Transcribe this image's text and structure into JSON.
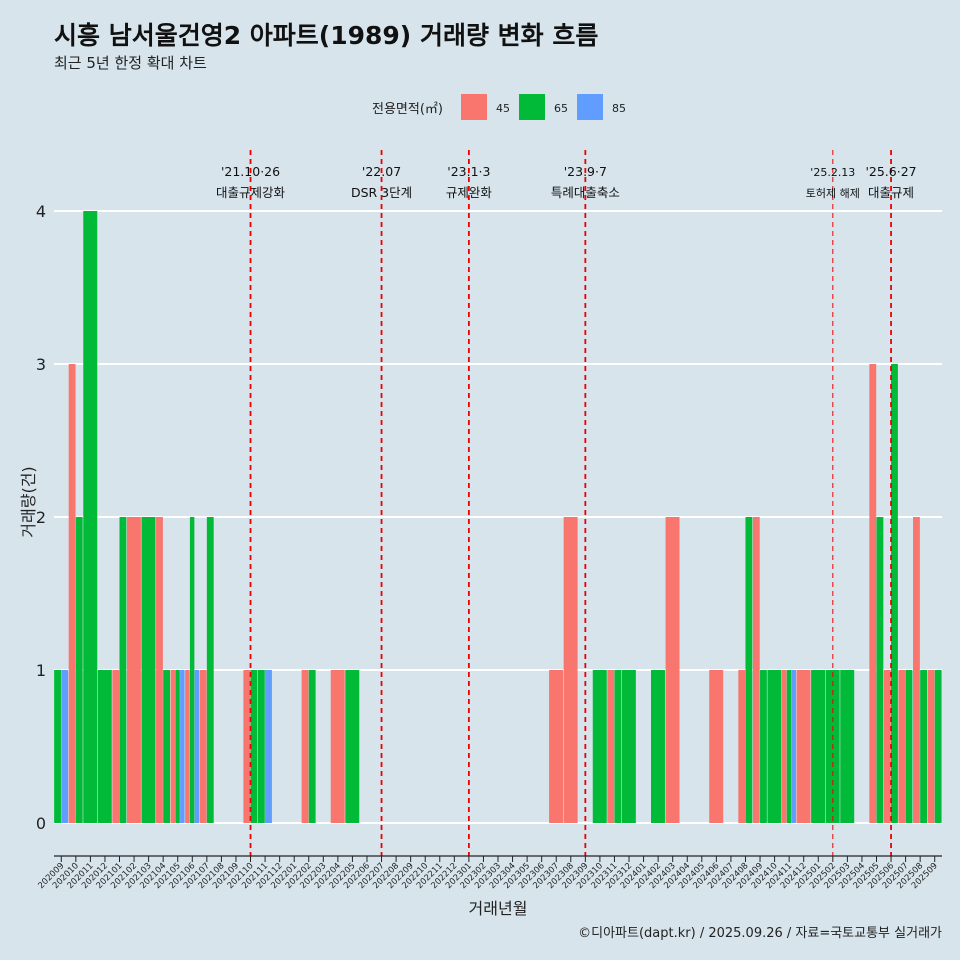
{
  "chart_data": {
    "type": "bar",
    "title": "시흥 남서울건영2 아파트(1989) 거래량 변화 흐름",
    "subtitle": "최근 5년 한정 확대 차트",
    "xlabel": "거래년월",
    "ylabel": "거래량(건)",
    "ylim": [
      0,
      4.1
    ],
    "yticks": [
      0,
      1,
      2,
      3,
      4
    ],
    "grid": true,
    "legend": {
      "title": "전용면적(㎡)",
      "placement": "top",
      "entries": [
        {
          "name": "45",
          "color": "#F8766D"
        },
        {
          "name": "65",
          "color": "#00BA38"
        },
        {
          "name": "85",
          "color": "#619CFF"
        }
      ]
    },
    "categories": [
      "202009",
      "202010",
      "202011",
      "202012",
      "202101",
      "202102",
      "202103",
      "202104",
      "202105",
      "202106",
      "202107",
      "202108",
      "202109",
      "202110",
      "202111",
      "202112",
      "202201",
      "202202",
      "202203",
      "202204",
      "202205",
      "202206",
      "202207",
      "202208",
      "202209",
      "202210",
      "202211",
      "202212",
      "202301",
      "202302",
      "202303",
      "202304",
      "202305",
      "202306",
      "202307",
      "202308",
      "202309",
      "202310",
      "202311",
      "202312",
      "202401",
      "202402",
      "202403",
      "202404",
      "202405",
      "202406",
      "202407",
      "202408",
      "202409",
      "202410",
      "202411",
      "202412",
      "202501",
      "202502",
      "202503",
      "202504",
      "202505",
      "202506",
      "202507",
      "202508",
      "202509"
    ],
    "bars": [
      {
        "x": "202009",
        "series": [
          {
            "name": "65",
            "value": 1
          },
          {
            "name": "85",
            "value": 1
          }
        ]
      },
      {
        "x": "202010",
        "series": [
          {
            "name": "45",
            "value": 3
          },
          {
            "name": "65",
            "value": 2
          }
        ]
      },
      {
        "x": "202011",
        "series": [
          {
            "name": "65",
            "value": 4
          }
        ]
      },
      {
        "x": "202012",
        "series": [
          {
            "name": "65",
            "value": 1
          }
        ]
      },
      {
        "x": "202101",
        "series": [
          {
            "name": "45",
            "value": 1
          },
          {
            "name": "65",
            "value": 2
          }
        ]
      },
      {
        "x": "202102",
        "series": [
          {
            "name": "45",
            "value": 2
          }
        ]
      },
      {
        "x": "202103",
        "series": [
          {
            "name": "65",
            "value": 2
          }
        ]
      },
      {
        "x": "202104",
        "series": [
          {
            "name": "45",
            "value": 2
          },
          {
            "name": "65",
            "value": 1
          }
        ]
      },
      {
        "x": "202105",
        "series": [
          {
            "name": "45",
            "value": 1
          },
          {
            "name": "65",
            "value": 1
          },
          {
            "name": "85",
            "value": 1
          }
        ]
      },
      {
        "x": "202106",
        "series": [
          {
            "name": "45",
            "value": 1
          },
          {
            "name": "65",
            "value": 2
          },
          {
            "name": "85",
            "value": 1
          }
        ]
      },
      {
        "x": "202107",
        "series": [
          {
            "name": "45",
            "value": 1
          },
          {
            "name": "65",
            "value": 2
          }
        ]
      },
      {
        "x": "202110",
        "series": [
          {
            "name": "45",
            "value": 1
          },
          {
            "name": "65",
            "value": 1
          }
        ]
      },
      {
        "x": "202111",
        "series": [
          {
            "name": "65",
            "value": 1
          },
          {
            "name": "85",
            "value": 1
          }
        ]
      },
      {
        "x": "202202",
        "series": [
          {
            "name": "45",
            "value": 1
          },
          {
            "name": "65",
            "value": 1
          }
        ]
      },
      {
        "x": "202204",
        "series": [
          {
            "name": "45",
            "value": 1
          }
        ]
      },
      {
        "x": "202205",
        "series": [
          {
            "name": "65",
            "value": 1
          }
        ]
      },
      {
        "x": "202307",
        "series": [
          {
            "name": "45",
            "value": 1
          }
        ]
      },
      {
        "x": "202308",
        "series": [
          {
            "name": "45",
            "value": 2
          }
        ]
      },
      {
        "x": "202310",
        "series": [
          {
            "name": "65",
            "value": 1
          }
        ]
      },
      {
        "x": "202311",
        "series": [
          {
            "name": "45",
            "value": 1
          },
          {
            "name": "65",
            "value": 1
          }
        ]
      },
      {
        "x": "202312",
        "series": [
          {
            "name": "65",
            "value": 1
          }
        ]
      },
      {
        "x": "202402",
        "series": [
          {
            "name": "65",
            "value": 1
          }
        ]
      },
      {
        "x": "202403",
        "series": [
          {
            "name": "45",
            "value": 2
          }
        ]
      },
      {
        "x": "202406",
        "series": [
          {
            "name": "45",
            "value": 1
          }
        ]
      },
      {
        "x": "202408",
        "series": [
          {
            "name": "45",
            "value": 1
          },
          {
            "name": "65",
            "value": 2
          }
        ]
      },
      {
        "x": "202409",
        "series": [
          {
            "name": "45",
            "value": 2
          },
          {
            "name": "65",
            "value": 1
          }
        ]
      },
      {
        "x": "202410",
        "series": [
          {
            "name": "65",
            "value": 1
          }
        ]
      },
      {
        "x": "202411",
        "series": [
          {
            "name": "45",
            "value": 1
          },
          {
            "name": "65",
            "value": 1
          },
          {
            "name": "85",
            "value": 1
          }
        ]
      },
      {
        "x": "202412",
        "series": [
          {
            "name": "45",
            "value": 1
          }
        ]
      },
      {
        "x": "202501",
        "series": [
          {
            "name": "65",
            "value": 1
          }
        ]
      },
      {
        "x": "202502",
        "series": [
          {
            "name": "65",
            "value": 1
          }
        ]
      },
      {
        "x": "202503",
        "series": [
          {
            "name": "65",
            "value": 1
          }
        ]
      },
      {
        "x": "202505",
        "series": [
          {
            "name": "45",
            "value": 3
          },
          {
            "name": "65",
            "value": 2
          }
        ]
      },
      {
        "x": "202506",
        "series": [
          {
            "name": "45",
            "value": 1
          },
          {
            "name": "65",
            "value": 3
          }
        ]
      },
      {
        "x": "202507",
        "series": [
          {
            "name": "45",
            "value": 1
          },
          {
            "name": "65",
            "value": 1
          }
        ]
      },
      {
        "x": "202508",
        "series": [
          {
            "name": "45",
            "value": 2
          },
          {
            "name": "65",
            "value": 1
          }
        ]
      },
      {
        "x": "202509",
        "series": [
          {
            "name": "45",
            "value": 1
          },
          {
            "name": "65",
            "value": 1
          }
        ]
      }
    ],
    "annotations": [
      {
        "x": "202110",
        "date": "'21.10·26",
        "label": "대출규제강화"
      },
      {
        "x": "202207",
        "date": "'22.07",
        "label": "DSR 3단계"
      },
      {
        "x": "202301",
        "date": "'23.1·3",
        "label": "규제완화"
      },
      {
        "x": "202309",
        "date": "'23.9·7",
        "label": "특례대출축소"
      },
      {
        "x": "202502",
        "date": "'25.2.13",
        "label": "토허제 해제"
      },
      {
        "x": "202506",
        "date": "'25.6·27",
        "label": "대출규제"
      }
    ]
  },
  "caption": "©디아파트(dapt.kr) / 2025.09.26 / 자료=국토교통부 실거래가"
}
